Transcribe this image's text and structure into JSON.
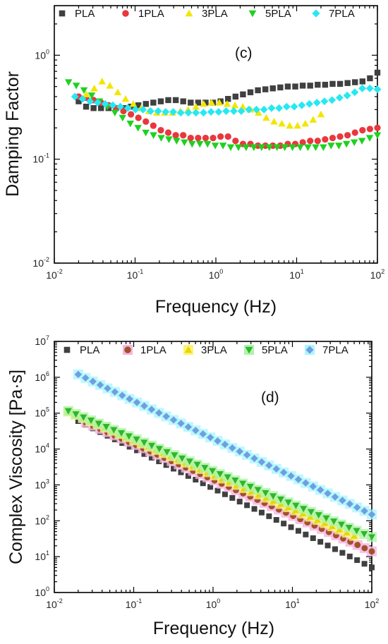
{
  "chart_data": [
    {
      "type": "scatter",
      "panel_label": "(c)",
      "xlabel": "Frequency (Hz)",
      "ylabel": "Damping Factor",
      "xscale": "log",
      "yscale": "log",
      "xlim": [
        0.01,
        100
      ],
      "ylim": [
        0.01,
        3
      ],
      "xticks": [
        {
          "base": "10",
          "exp": "-2",
          "value": 0.01
        },
        {
          "base": "10",
          "exp": "-1",
          "value": 0.1
        },
        {
          "base": "10",
          "exp": "0",
          "value": 1
        },
        {
          "base": "10",
          "exp": "1",
          "value": 10
        },
        {
          "base": "10",
          "exp": "2",
          "value": 100
        }
      ],
      "yticks": [
        {
          "base": "10",
          "exp": "-2",
          "value": 0.01
        },
        {
          "base": "10",
          "exp": "-1",
          "value": 0.1
        },
        {
          "base": "10",
          "exp": "0",
          "value": 1
        }
      ],
      "legend_placement": "top",
      "series": [
        {
          "name": "PLA",
          "marker": "square",
          "color": "#404040",
          "x_start": 0.02,
          "x_end": 100,
          "n": 41,
          "values": [
            0.36,
            0.32,
            0.31,
            0.31,
            0.31,
            0.31,
            0.31,
            0.32,
            0.33,
            0.34,
            0.35,
            0.36,
            0.37,
            0.37,
            0.36,
            0.35,
            0.35,
            0.35,
            0.35,
            0.36,
            0.38,
            0.4,
            0.42,
            0.44,
            0.46,
            0.47,
            0.48,
            0.49,
            0.5,
            0.5,
            0.51,
            0.51,
            0.52,
            0.52,
            0.53,
            0.53,
            0.54,
            0.55,
            0.56,
            0.6,
            0.68
          ]
        },
        {
          "name": "1PLA",
          "marker": "circle",
          "color": "#e8383d",
          "x_start": 0.02,
          "x_end": 100,
          "n": 41,
          "values": [
            0.4,
            0.39,
            0.37,
            0.35,
            0.33,
            0.31,
            0.29,
            0.27,
            0.25,
            0.23,
            0.21,
            0.19,
            0.18,
            0.17,
            0.17,
            0.16,
            0.16,
            0.16,
            0.16,
            0.165,
            0.165,
            0.15,
            0.14,
            0.14,
            0.135,
            0.135,
            0.135,
            0.135,
            0.14,
            0.14,
            0.145,
            0.15,
            0.15,
            0.155,
            0.16,
            0.165,
            0.17,
            0.18,
            0.19,
            0.195,
            0.2
          ]
        },
        {
          "name": "3PLA",
          "marker": "triangle-up",
          "color": "#f2e600",
          "x_start": 0.025,
          "x_end": 20,
          "n": 31,
          "values": [
            0.42,
            0.48,
            0.56,
            0.51,
            0.44,
            0.38,
            0.34,
            0.31,
            0.29,
            0.28,
            0.28,
            0.28,
            0.29,
            0.3,
            0.32,
            0.34,
            0.35,
            0.35,
            0.34,
            0.33,
            0.32,
            0.3,
            0.28,
            0.25,
            0.23,
            0.22,
            0.21,
            0.21,
            0.22,
            0.24,
            0.27
          ]
        },
        {
          "name": "5PLA",
          "marker": "triangle-down",
          "color": "#1fd11f",
          "x_start": 0.015,
          "x_end": 100,
          "n": 41,
          "values": [
            0.55,
            0.51,
            0.46,
            0.41,
            0.36,
            0.32,
            0.28,
            0.25,
            0.22,
            0.2,
            0.18,
            0.17,
            0.16,
            0.155,
            0.15,
            0.145,
            0.14,
            0.14,
            0.14,
            0.135,
            0.135,
            0.13,
            0.13,
            0.13,
            0.13,
            0.13,
            0.13,
            0.13,
            0.13,
            0.13,
            0.13,
            0.13,
            0.13,
            0.13,
            0.135,
            0.135,
            0.14,
            0.145,
            0.15,
            0.16,
            0.17
          ]
        },
        {
          "name": "7PLA",
          "marker": "diamond",
          "color": "#27e8f2",
          "x_start": 0.018,
          "x_end": 100,
          "n": 41,
          "values": [
            0.4,
            0.38,
            0.36,
            0.35,
            0.34,
            0.33,
            0.32,
            0.31,
            0.3,
            0.3,
            0.29,
            0.29,
            0.285,
            0.285,
            0.28,
            0.28,
            0.28,
            0.28,
            0.285,
            0.285,
            0.29,
            0.29,
            0.29,
            0.3,
            0.3,
            0.3,
            0.31,
            0.31,
            0.32,
            0.32,
            0.33,
            0.34,
            0.35,
            0.36,
            0.37,
            0.39,
            0.41,
            0.44,
            0.48,
            0.48,
            0.47
          ]
        }
      ]
    },
    {
      "type": "scatter",
      "panel_label": "(d)",
      "xlabel": "Frequency (Hz)",
      "ylabel": "Complex Viscosity [Pa·s]",
      "xscale": "log",
      "yscale": "log",
      "xlim": [
        0.01,
        100
      ],
      "ylim": [
        1,
        10000000
      ],
      "xticks": [
        {
          "base": "10",
          "exp": "-2",
          "value": 0.01
        },
        {
          "base": "10",
          "exp": "-1",
          "value": 0.1
        },
        {
          "base": "10",
          "exp": "0",
          "value": 1
        },
        {
          "base": "10",
          "exp": "1",
          "value": 10
        },
        {
          "base": "10",
          "exp": "2",
          "value": 100
        }
      ],
      "yticks": [
        {
          "base": "10",
          "exp": "0",
          "value": 1
        },
        {
          "base": "10",
          "exp": "1",
          "value": 10
        },
        {
          "base": "10",
          "exp": "2",
          "value": 100
        },
        {
          "base": "10",
          "exp": "3",
          "value": 1000
        },
        {
          "base": "10",
          "exp": "4",
          "value": 10000
        },
        {
          "base": "10",
          "exp": "5",
          "value": 100000
        },
        {
          "base": "10",
          "exp": "6",
          "value": 1000000
        },
        {
          "base": "10",
          "exp": "7",
          "value": 10000000
        }
      ],
      "legend_placement": "top",
      "series": [
        {
          "name": "PLA",
          "marker": "square",
          "color": "#404040",
          "halo": "",
          "x_start": 0.02,
          "x_end": 100,
          "n": 41,
          "y_start": 60000,
          "y_end": 5
        },
        {
          "name": "1PLA",
          "marker": "circle",
          "color": "#a0522d",
          "halo": "#f8b4e0",
          "x_start": 0.025,
          "x_end": 100,
          "n": 41,
          "y_start": 55000,
          "y_end": 14
        },
        {
          "name": "3PLA",
          "marker": "triangle-up",
          "color": "#e6d800",
          "halo": "#fff27a",
          "x_start": 0.015,
          "x_end": 60,
          "n": 40,
          "y_start": 110000,
          "y_end": 38
        },
        {
          "name": "5PLA",
          "marker": "triangle-down",
          "color": "#2fb52f",
          "halo": "#aef5a8",
          "x_start": 0.015,
          "x_end": 100,
          "n": 41,
          "y_start": 115000,
          "y_end": 35
        },
        {
          "name": "7PLA",
          "marker": "diamond",
          "color": "#6f9fe0",
          "halo": "#aaf6ff",
          "x_start": 0.02,
          "x_end": 100,
          "n": 41,
          "y_start": 1200000,
          "y_end": 150
        }
      ]
    }
  ]
}
